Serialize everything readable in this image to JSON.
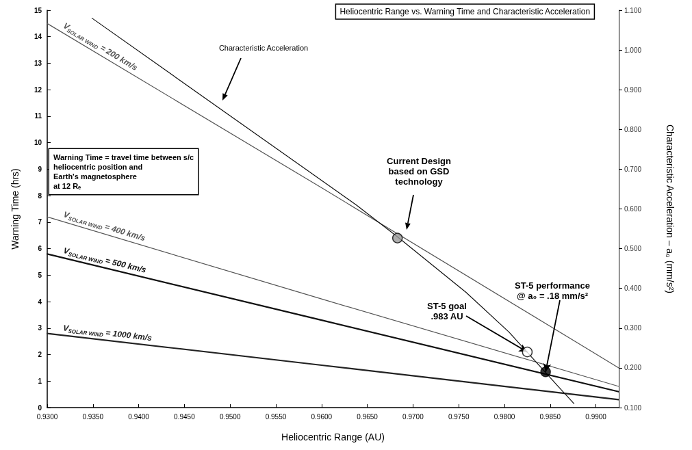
{
  "chart_data": {
    "type": "line",
    "title": "Heliocentric Range vs. Warning Time and Characteristic Acceleration",
    "xlabel": "Heliocentric Range (AU)",
    "ylabel": "Warning Time (hrs)",
    "y2label": "Characteristic Acceleration – a₀ (mm/s²)",
    "xlim": [
      0.93,
      0.9925
    ],
    "xticks": [
      {
        "value": 0.93,
        "label": "0.9300"
      },
      {
        "value": 0.935,
        "label": "0.9350"
      },
      {
        "value": 0.94,
        "label": "0.9400"
      },
      {
        "value": 0.945,
        "label": "0.9450"
      },
      {
        "value": 0.95,
        "label": "0.9500"
      },
      {
        "value": 0.955,
        "label": "0.9550"
      },
      {
        "value": 0.96,
        "label": "0.9600"
      },
      {
        "value": 0.965,
        "label": "0.9650"
      },
      {
        "value": 0.97,
        "label": "0.9700"
      },
      {
        "value": 0.975,
        "label": "0.9750"
      },
      {
        "value": 0.98,
        "label": "0.9800"
      },
      {
        "value": 0.985,
        "label": "0.9850"
      },
      {
        "value": 0.99,
        "label": "0.9900"
      }
    ],
    "ylim": [
      0,
      15
    ],
    "yticks": [
      0,
      1,
      2,
      3,
      4,
      5,
      6,
      7,
      8,
      9,
      10,
      11,
      12,
      13,
      14,
      15
    ],
    "y2lim": [
      0.1,
      1.1
    ],
    "y2ticks": [
      {
        "value": 0.1,
        "label": "0.100"
      },
      {
        "value": 0.2,
        "label": "0.200"
      },
      {
        "value": 0.3,
        "label": "0.300"
      },
      {
        "value": 0.4,
        "label": "0.400"
      },
      {
        "value": 0.5,
        "label": "0.500"
      },
      {
        "value": 0.6,
        "label": "0.600"
      },
      {
        "value": 0.7,
        "label": "0.700"
      },
      {
        "value": 0.8,
        "label": "0.800"
      },
      {
        "value": 0.9,
        "label": "0.900"
      },
      {
        "value": 1.0,
        "label": "1.000"
      },
      {
        "value": 1.1,
        "label": "1.100"
      }
    ],
    "grid": false,
    "legend": false,
    "marker": "none",
    "line_style": "solid",
    "series": [
      {
        "name": "V$_{SOLAR WIND}$ = 200 km/s",
        "color": "#555555",
        "x": [
          0.93,
          0.96,
          0.9925
        ],
        "values": [
          14.5,
          8.3,
          1.5
        ]
      },
      {
        "name": "V$_{SOLAR WIND}$ = 400 km/s",
        "color": "#555555",
        "x": [
          0.93,
          0.96,
          0.9925
        ],
        "values": [
          7.2,
          4.1,
          0.8
        ]
      },
      {
        "name": "V$_{SOLAR WIND}$ = 500 km/s",
        "color": "#111111",
        "x": [
          0.93,
          0.96,
          0.9925
        ],
        "values": [
          5.8,
          3.3,
          0.6
        ]
      },
      {
        "name": "V$_{SOLAR WIND}$ = 1000 km/s",
        "color": "#222222",
        "x": [
          0.93,
          0.96,
          0.9925
        ],
        "values": [
          2.8,
          1.6,
          0.3
        ]
      },
      {
        "color": "#111111",
        "axis": "y2",
        "x": [
          0.9349,
          0.9638,
          0.9683,
          0.9758,
          0.9805,
          0.986,
          0.9876
        ],
        "values": [
          1.08,
          0.61,
          0.53,
          0.39,
          0.29,
          0.15,
          0.11
        ]
      },
      {
        "type": "scatter",
        "marker": "circle",
        "color": "#000000",
        "colors": [
          "#999999",
          "#ffffff",
          "#000000"
        ],
        "x": [
          0.9683,
          0.9825,
          0.9845
        ],
        "values": [
          6.4,
          2.1,
          1.35
        ]
      }
    ],
    "annotations": [
      "Characteristic Acceleration",
      "Current Design\nbased on GSD\ntechnology",
      {
        "text": "ST-5 goal\n.983 AU",
        "x": 0.9825,
        "y": 2.1
      },
      {
        "text": "ST-5 performance\n@ a₀ = .18 mm/s²",
        "x": 0.9845,
        "y": 1.35
      },
      "Warning Time = travel time between s/c\nheliocentric position and\nEarth's magnetosphere\nat 12 Rₑ"
    ]
  }
}
